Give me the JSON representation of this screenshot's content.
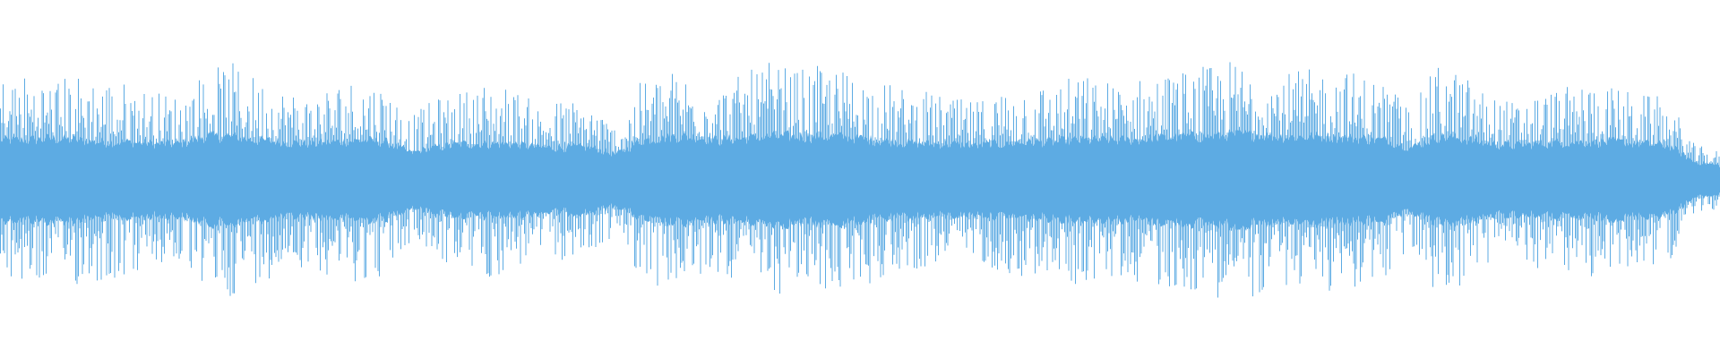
{
  "chart_data": {
    "type": "area",
    "title": "",
    "xlabel": "",
    "ylabel": "",
    "ylim": [
      -1,
      1
    ],
    "grid": false,
    "color": "#5dabe3",
    "series": [
      {
        "peak_envelope": [
          0.58,
          0.6,
          0.57,
          0.6,
          0.58,
          0.55,
          0.5,
          0.48,
          0.62,
          0.66,
          0.58,
          0.52,
          0.48,
          0.55,
          0.58,
          0.54,
          0.36,
          0.46,
          0.5,
          0.56,
          0.52,
          0.42,
          0.46,
          0.44,
          0.3,
          0.56,
          0.62,
          0.6,
          0.52,
          0.6,
          0.66,
          0.62,
          0.64,
          0.62,
          0.58,
          0.52,
          0.5,
          0.46,
          0.44,
          0.52,
          0.56,
          0.54,
          0.6,
          0.56,
          0.56,
          0.6,
          0.62,
          0.64,
          0.68,
          0.66,
          0.6,
          0.62,
          0.64,
          0.6,
          0.56,
          0.4,
          0.66,
          0.6,
          0.48,
          0.44,
          0.5,
          0.52,
          0.56,
          0.52,
          0.48,
          0.46,
          0.2,
          0.16
        ],
        "core_envelope": [
          0.22,
          0.22,
          0.23,
          0.22,
          0.21,
          0.21,
          0.2,
          0.2,
          0.24,
          0.24,
          0.22,
          0.21,
          0.2,
          0.21,
          0.22,
          0.21,
          0.15,
          0.18,
          0.2,
          0.2,
          0.2,
          0.18,
          0.18,
          0.18,
          0.14,
          0.22,
          0.24,
          0.24,
          0.22,
          0.23,
          0.24,
          0.24,
          0.24,
          0.24,
          0.22,
          0.21,
          0.2,
          0.2,
          0.19,
          0.2,
          0.21,
          0.21,
          0.22,
          0.22,
          0.22,
          0.23,
          0.24,
          0.24,
          0.25,
          0.25,
          0.24,
          0.24,
          0.24,
          0.23,
          0.22,
          0.18,
          0.24,
          0.23,
          0.2,
          0.19,
          0.2,
          0.21,
          0.21,
          0.21,
          0.2,
          0.19,
          0.1,
          0.08
        ]
      }
    ]
  }
}
